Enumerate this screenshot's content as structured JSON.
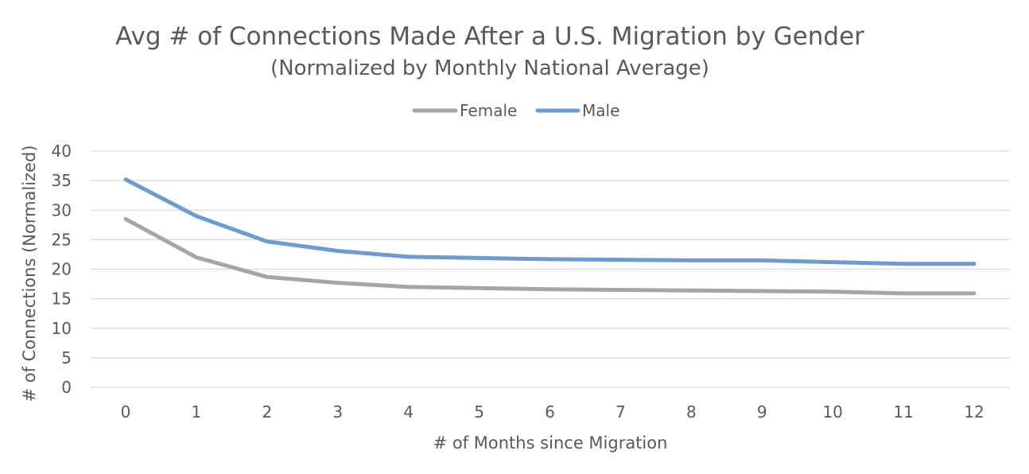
{
  "chart_data": {
    "type": "line",
    "title": "Avg # of Connections Made After a U.S. Migration by Gender",
    "subtitle": "(Normalized by Monthly National Average)",
    "xlabel": "# of Months since Migration",
    "ylabel": "# of Connections (Normalized)",
    "categories": [
      "0",
      "1",
      "2",
      "3",
      "4",
      "5",
      "6",
      "7",
      "8",
      "9",
      "10",
      "11",
      "12"
    ],
    "y_ticks": [
      "0",
      "5",
      "10",
      "15",
      "20",
      "25",
      "30",
      "35",
      "40"
    ],
    "ylim": [
      0,
      40
    ],
    "grid": "horizontal",
    "legend_position": "top-center",
    "series": [
      {
        "name": "Female",
        "color": "#a5a5a5",
        "values": [
          28.5,
          22.0,
          18.7,
          17.7,
          17.0,
          16.8,
          16.6,
          16.5,
          16.4,
          16.3,
          16.2,
          15.9,
          15.9
        ]
      },
      {
        "name": "Male",
        "color": "#6b9bd1",
        "values": [
          35.2,
          29.0,
          24.7,
          23.1,
          22.1,
          21.9,
          21.7,
          21.6,
          21.5,
          21.5,
          21.2,
          20.9,
          20.9
        ]
      }
    ]
  }
}
